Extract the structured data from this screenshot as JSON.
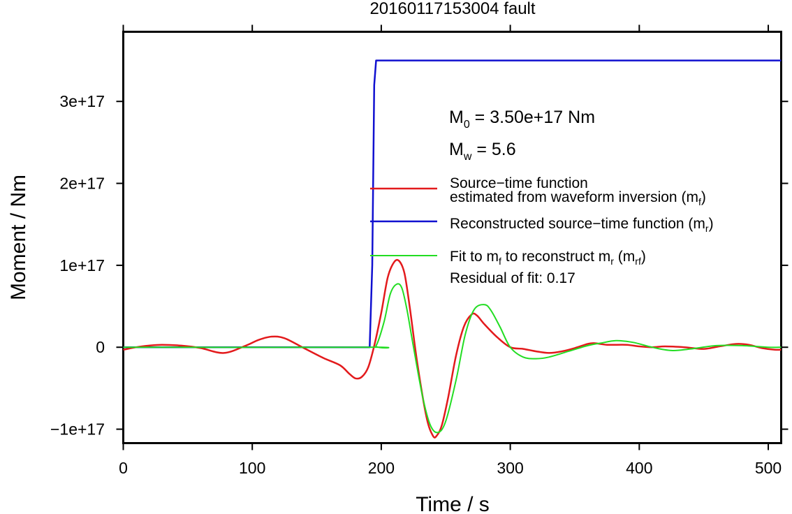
{
  "chart_data": {
    "type": "line",
    "title": "20160117153004 fault",
    "xlabel": "Time / s",
    "ylabel": "Moment / Nm",
    "xlim": [
      0,
      510
    ],
    "ylim": [
      -1.17e+17,
      3.85e+17
    ],
    "x_ticks": [
      {
        "value": 0,
        "label": "0"
      },
      {
        "value": 100,
        "label": "100"
      },
      {
        "value": 200,
        "label": "200"
      },
      {
        "value": 300,
        "label": "300"
      },
      {
        "value": 400,
        "label": "400"
      },
      {
        "value": 500,
        "label": "500"
      }
    ],
    "y_ticks": [
      {
        "value": -1e+17,
        "label": "−1e+17"
      },
      {
        "value": 0,
        "label": "0"
      },
      {
        "value": 1e+17,
        "label": "1e+17"
      },
      {
        "value": 2e+17,
        "label": "2e+17"
      },
      {
        "value": 3e+17,
        "label": "3e+17"
      }
    ],
    "grid": false,
    "annotations": {
      "m0": {
        "symbol": "M",
        "sub": "0",
        "text": " = 3.50e+17 Nm"
      },
      "mw": {
        "symbol": "M",
        "sub": "w",
        "text": " = 5.6"
      },
      "residual": "Residual of fit: 0.17"
    },
    "legend_position": "center-right",
    "series": [
      {
        "key": "mf",
        "color": "#e31a1c",
        "legend": [
          {
            "text": "Source−time function"
          },
          {
            "text": "estimated from waveform inversion (m",
            "sub": "f",
            "tail": ")"
          }
        ],
        "x": [
          0,
          10,
          20,
          30,
          45,
          60,
          78,
          95,
          105,
          115,
          125,
          140,
          155,
          168,
          175,
          180,
          185,
          190,
          195,
          200,
          205,
          210,
          214,
          218,
          222,
          228,
          235,
          240,
          243,
          247,
          252,
          258,
          264,
          270,
          274,
          280,
          290,
          300,
          310,
          320,
          330,
          340,
          350,
          360,
          365,
          375,
          390,
          400,
          410,
          420,
          435,
          450,
          462,
          475,
          485,
          495,
          505,
          510
        ],
        "y": [
          -3000000000000000.0,
          0,
          2000000000000000.0,
          3000000000000000.0,
          2000000000000000.0,
          -1000000000000000.0,
          -7000000000000000.0,
          2000000000000000.0,
          9000000000000000.0,
          1.3e+16,
          1.1e+16,
          -1000000000000000.0,
          -1.3e+16,
          -2.2e+16,
          -3.2e+16,
          -3.8e+16,
          -3.6e+16,
          -2.4e+16,
          5000000000000000.0,
          4.2e+16,
          8.5e+16,
          1.04e+17,
          1.05e+17,
          9e+16,
          5e+16,
          -2e+16,
          -8.5e+16,
          -1.08e+17,
          -1.08e+17,
          -9.5e+16,
          -6e+16,
          -1e+16,
          2.5e+16,
          4e+16,
          3.9e+16,
          2.8e+16,
          1.2e+16,
          0,
          -2000000000000000.0,
          -5000000000000000.0,
          -7000000000000000.0,
          -5000000000000000.0,
          -1000000000000000.0,
          4000000000000000.0,
          5000000000000000.0,
          3000000000000000.0,
          3000000000000000.0,
          1000000000000000.0,
          0,
          1000000000000000.0,
          0,
          -2000000000000000.0,
          1000000000000000.0,
          4000000000000000.0,
          3000000000000000.0,
          -1000000000000000.0,
          -3000000000000000.0,
          -3000000000000000.0
        ]
      },
      {
        "key": "mr",
        "color": "#1010d0",
        "legend": [
          {
            "text": "Reconstructed source−time function (m",
            "sub": "r",
            "tail": ")"
          }
        ],
        "x": [
          0,
          191,
          193,
          194.5,
          196,
          510
        ],
        "y": [
          0,
          0,
          1e+17,
          3.2e+17,
          3.5e+17,
          3.5e+17
        ]
      },
      {
        "key": "mrf",
        "color": "#22dd22",
        "legend": [
          {
            "text": "Fit to m",
            "sub": "f",
            "tail": " to reconstruct m"
          },
          {
            "text": "r",
            "isSubOnly": true
          }
        ],
        "x": [
          0,
          190,
          196,
          202,
          207,
          212,
          216,
          220,
          225,
          232,
          238,
          244,
          250,
          258,
          265,
          272,
          280,
          285,
          292,
          300,
          310,
          320,
          330,
          345,
          360,
          370,
          382,
          395,
          410,
          425,
          440,
          460,
          480,
          500,
          510
        ],
        "y": [
          0,
          0,
          2000000000000000.0,
          3e+16,
          6.5e+16,
          7.7e+16,
          7.2e+16,
          4.5e+16,
          0,
          -6e+16,
          -9.5e+16,
          -1.04e+17,
          -9e+16,
          -4e+16,
          1.5e+16,
          4.6e+16,
          5.2e+16,
          4.5e+16,
          2.5e+16,
          0,
          -1.2e+16,
          -1.4e+16,
          -1.2e+16,
          -5000000000000000.0,
          2000000000000000.0,
          5000000000000000.0,
          8000000000000000.0,
          6000000000000000.0,
          0,
          -4000000000000000.0,
          -2000000000000000.0,
          2000000000000000.0,
          2000000000000000.0,
          0,
          0
        ]
      }
    ]
  },
  "legend_labels": {
    "mf_line1": "Source−time function",
    "mf_line2": "estimated from waveform inversion (m",
    "mf_sub": "f",
    "mf_tail": ")",
    "mr_line": "Reconstructed source−time function (m",
    "mr_sub": "r",
    "mr_tail": ")",
    "mrf_a": "Fit to m",
    "mrf_sub1": "f",
    "mrf_b": " to reconstruct m",
    "mrf_sub2": "r",
    "mrf_c": " (m",
    "mrf_sub3": "rf",
    "mrf_d": ")"
  }
}
